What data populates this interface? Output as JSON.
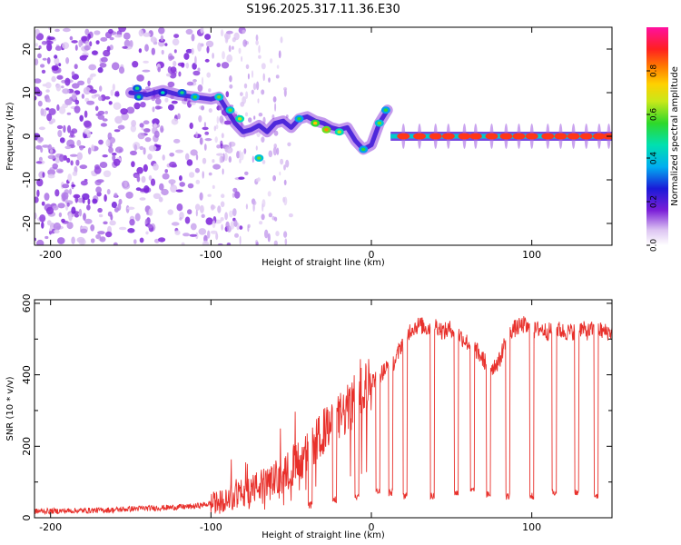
{
  "figure": {
    "title": "S196.2025.317.11.36.E30"
  },
  "chart_data": [
    {
      "type": "heatmap",
      "name": "spectrogram",
      "xlabel": "Height of straight line (km)",
      "ylabel": "Frequency (Hz)",
      "xlim": [
        -210,
        150
      ],
      "ylim": [
        -25,
        25
      ],
      "xticks": [
        -200,
        -100,
        0,
        100
      ],
      "yticks": [
        -20,
        -10,
        0,
        10,
        20
      ],
      "colorbar": {
        "label": "Normalized spectral amplitude",
        "range": [
          0,
          1
        ],
        "ticks": [
          "0.0",
          "0.2",
          "0.4",
          "0.6",
          "0.8"
        ],
        "tick_values": [
          0.0,
          0.2,
          0.4,
          0.6,
          0.8
        ]
      },
      "ridge": {
        "description_free": true,
        "points": [
          [
            -150,
            10
          ],
          [
            -140,
            9.5
          ],
          [
            -130,
            10.5
          ],
          [
            -120,
            9.5
          ],
          [
            -110,
            9
          ],
          [
            -100,
            8.5
          ],
          [
            -95,
            9
          ],
          [
            -90,
            6
          ],
          [
            -85,
            3
          ],
          [
            -80,
            1
          ],
          [
            -75,
            1.5
          ],
          [
            -70,
            2.5
          ],
          [
            -65,
            1
          ],
          [
            -60,
            3
          ],
          [
            -55,
            3.5
          ],
          [
            -50,
            2
          ],
          [
            -45,
            4
          ],
          [
            -40,
            4.5
          ],
          [
            -35,
            3.5
          ],
          [
            -30,
            3
          ],
          [
            -25,
            2
          ],
          [
            -20,
            1.5
          ],
          [
            -15,
            2
          ],
          [
            -10,
            -1
          ],
          [
            -5,
            -3
          ],
          [
            0,
            -2
          ],
          [
            5,
            3
          ],
          [
            10,
            6
          ],
          [
            12,
            0
          ],
          [
            150,
            0
          ]
        ],
        "blobs_hz": [
          {
            "x": -146,
            "y": 11,
            "a": 0.3
          },
          {
            "x": -145,
            "y": 9,
            "a": 0.3
          },
          {
            "x": -130,
            "y": 10,
            "a": 0.25
          },
          {
            "x": -118,
            "y": 10,
            "a": 0.3
          },
          {
            "x": -110,
            "y": 9,
            "a": 0.35
          },
          {
            "x": -95,
            "y": 9,
            "a": 0.4
          },
          {
            "x": -88,
            "y": 6,
            "a": 0.4
          },
          {
            "x": -82,
            "y": 4,
            "a": 0.45
          },
          {
            "x": -70,
            "y": -5,
            "a": 0.4
          },
          {
            "x": -45,
            "y": 4,
            "a": 0.35
          },
          {
            "x": -35,
            "y": 3,
            "a": 0.55
          },
          {
            "x": -28,
            "y": 1.5,
            "a": 0.6
          },
          {
            "x": -20,
            "y": 1,
            "a": 0.45
          },
          {
            "x": -5,
            "y": -3,
            "a": 0.35
          },
          {
            "x": 5,
            "y": 3,
            "a": 0.4
          },
          {
            "x": 9,
            "y": 6,
            "a": 0.35
          }
        ],
        "peaks_km": [
          20,
          30,
          40,
          48,
          58,
          65,
          75,
          84,
          92,
          100,
          110,
          118,
          126,
          134,
          142,
          148
        ]
      }
    },
    {
      "type": "line",
      "name": "snr",
      "xlabel": "Height of straight line (km)",
      "ylabel": "SNR (10 * v/v)",
      "xlim": [
        -210,
        150
      ],
      "ylim": [
        0,
        610
      ],
      "xticks": [
        -200,
        -100,
        0,
        100
      ],
      "yticks": [
        0,
        200,
        400,
        600
      ],
      "color": "#e8302b",
      "series": [
        {
          "name": "SNR",
          "x": [
            -210,
            -180,
            -160,
            -150,
            -130,
            -110,
            -100,
            -95,
            -90,
            -85,
            -80,
            -75,
            -70,
            -65,
            -60,
            -55,
            -50,
            -45,
            -40,
            -35,
            -30,
            -25,
            -20,
            -15,
            -10,
            -5,
            0,
            5,
            10,
            15,
            20,
            25,
            30,
            35,
            40,
            45,
            50,
            55,
            60,
            65,
            70,
            75,
            80,
            85,
            90,
            95,
            100,
            105,
            110,
            115,
            120,
            125,
            130,
            135,
            140,
            145,
            150
          ],
          "y": [
            18,
            20,
            22,
            25,
            28,
            32,
            40,
            45,
            55,
            60,
            70,
            80,
            90,
            95,
            110,
            120,
            140,
            160,
            180,
            210,
            240,
            260,
            280,
            300,
            330,
            360,
            380,
            400,
            420,
            440,
            500,
            530,
            540,
            530,
            540,
            520,
            530,
            510,
            490,
            470,
            440,
            420,
            440,
            520,
            530,
            540,
            520,
            530,
            520,
            530,
            520,
            520,
            530,
            520,
            530,
            520,
            520
          ]
        }
      ],
      "dropouts_km": [
        {
          "x": -38,
          "y": 35
        },
        {
          "x": -23,
          "y": 50
        },
        {
          "x": -9,
          "y": 60
        },
        {
          "x": 4,
          "y": 75
        },
        {
          "x": 12,
          "y": 70
        },
        {
          "x": 21,
          "y": 60
        },
        {
          "x": 38,
          "y": 60
        },
        {
          "x": 53,
          "y": 70
        },
        {
          "x": 63,
          "y": 75
        },
        {
          "x": 73,
          "y": 65
        },
        {
          "x": 85,
          "y": 60
        },
        {
          "x": 100,
          "y": 60
        },
        {
          "x": 114,
          "y": 70
        },
        {
          "x": 128,
          "y": 70
        },
        {
          "x": 140,
          "y": 60
        }
      ]
    }
  ]
}
